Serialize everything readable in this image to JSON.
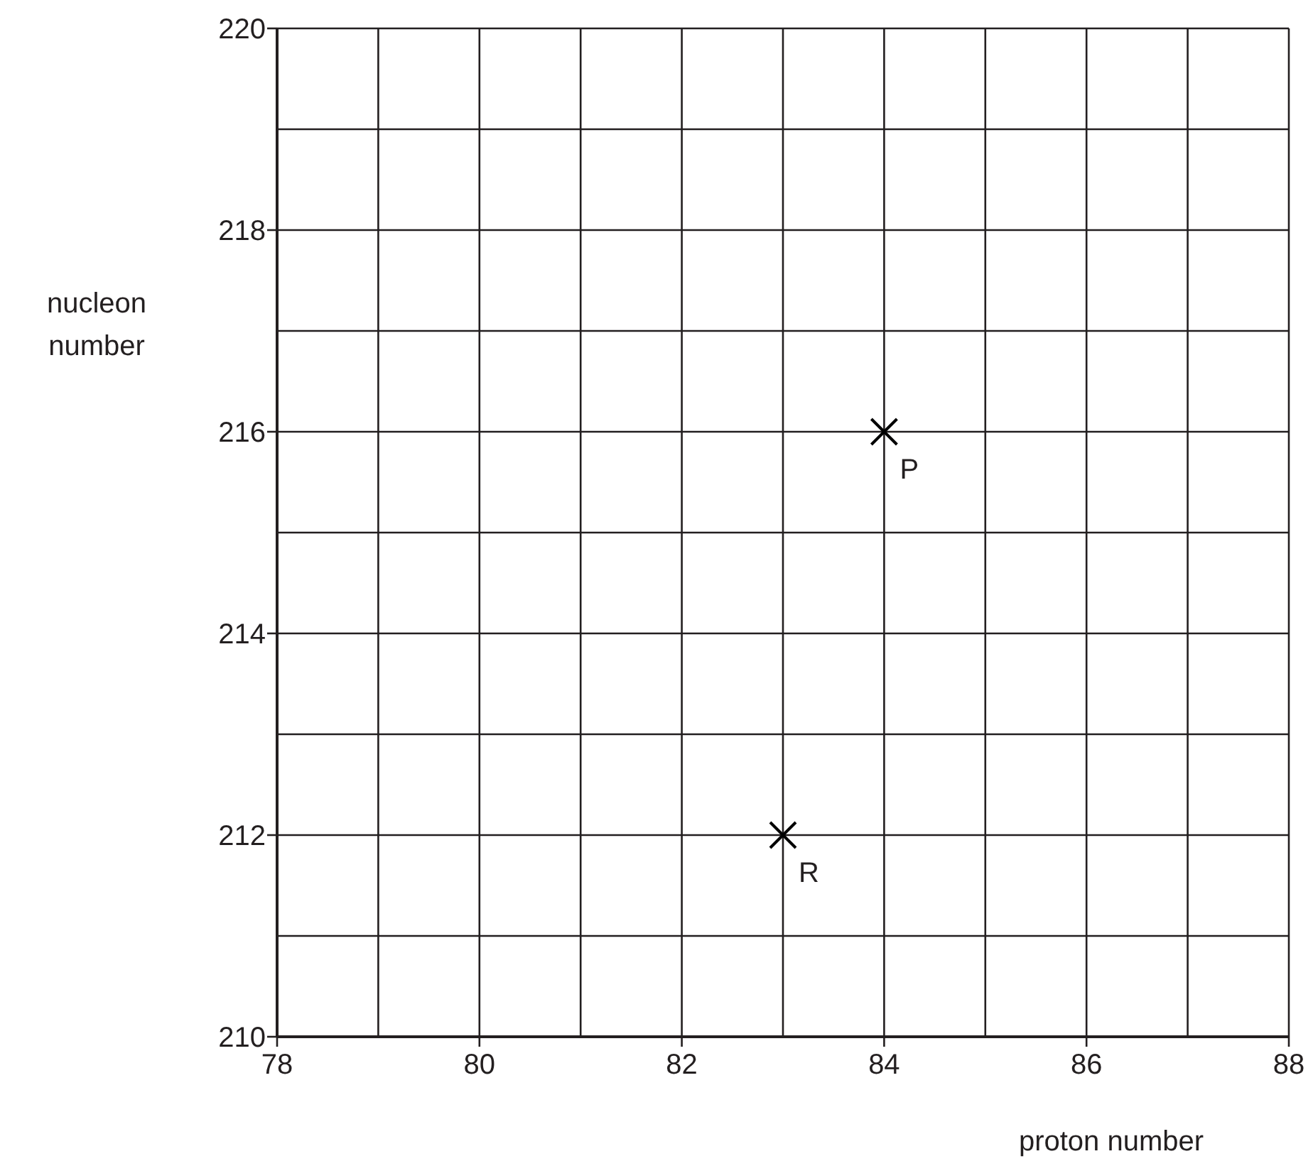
{
  "chart_data": {
    "type": "scatter",
    "xlabel": "proton number",
    "ylabel": "nucleon number",
    "xlim": [
      78,
      88
    ],
    "ylim": [
      210,
      220
    ],
    "xticks": [
      78,
      {
        "value": 79,
        "label": null
      },
      80,
      {
        "value": 81,
        "label": null
      },
      82,
      {
        "value": 83,
        "label": null
      },
      84,
      {
        "value": 85,
        "label": null
      },
      86,
      {
        "value": 87,
        "label": null
      },
      88
    ],
    "yticks": [
      210,
      {
        "value": 211,
        "label": null
      },
      212,
      {
        "value": 213,
        "label": null
      },
      214,
      {
        "value": 215,
        "label": null
      },
      216,
      {
        "value": 217,
        "label": null
      },
      218,
      {
        "value": 219,
        "label": null
      },
      220
    ],
    "grid": true,
    "marker": "cross",
    "series": [
      {
        "name": "P",
        "color": "#000000",
        "x": [
          84
        ],
        "values": [
          216
        ]
      },
      {
        "name": "R",
        "color": "#000000",
        "x": [
          83
        ],
        "values": [
          212
        ]
      }
    ]
  }
}
